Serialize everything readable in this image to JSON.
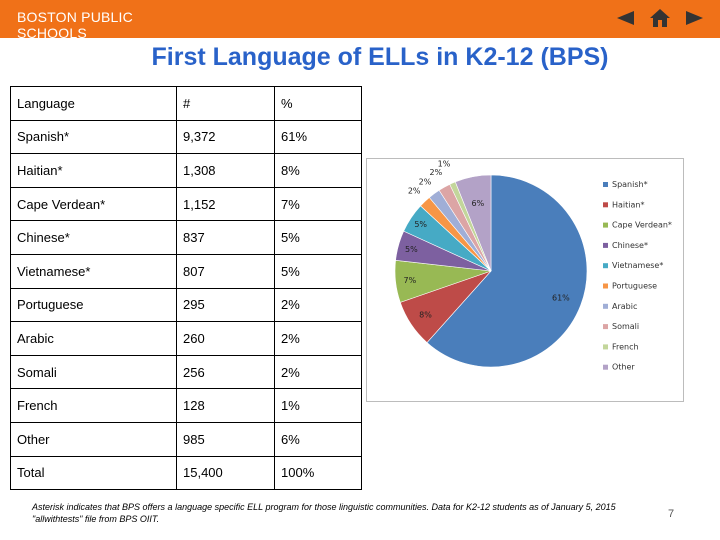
{
  "header": {
    "brand": "BOSTON PUBLIC SCHOOLS",
    "colors": {
      "bar": "#f07118",
      "icons": "#333333"
    },
    "icons": [
      "previous-arrow-icon",
      "home-icon",
      "next-arrow-icon"
    ]
  },
  "title": "First Language of ELLs in K2-12 (BPS)",
  "table": {
    "headers": [
      "Language",
      "#",
      "%"
    ],
    "rows": [
      [
        "Spanish*",
        "9,372",
        "61%"
      ],
      [
        "Haitian*",
        "1,308",
        "8%"
      ],
      [
        "Cape Verdean*",
        "1,152",
        "7%"
      ],
      [
        "Chinese*",
        "837",
        "5%"
      ],
      [
        "Vietnamese*",
        "807",
        "5%"
      ],
      [
        "Portuguese",
        "295",
        "2%"
      ],
      [
        "Arabic",
        "260",
        "2%"
      ],
      [
        "Somali",
        "256",
        "2%"
      ],
      [
        "French",
        "128",
        "1%"
      ],
      [
        "Other",
        "985",
        "6%"
      ],
      [
        "Total",
        "15,400",
        "100%"
      ]
    ]
  },
  "chart_data": {
    "type": "pie",
    "categories": [
      "Spanish*",
      "Haitian*",
      "Cape Verdean*",
      "Chinese*",
      "Vietnamese*",
      "Portuguese",
      "Arabic",
      "Somali",
      "French",
      "Other"
    ],
    "values": [
      61,
      8,
      7,
      5,
      5,
      2,
      2,
      2,
      1,
      6
    ],
    "labels": [
      "61%",
      "8%",
      "7%",
      "5%",
      "5%",
      "2%",
      "2%",
      "2%",
      "1%",
      "6%"
    ],
    "colors": [
      "#4a7ebb",
      "#be4b48",
      "#98b954",
      "#7d60a0",
      "#46aac5",
      "#f79646",
      "#a0aed6",
      "#dca5a5",
      "#c3d69b",
      "#b3a2c7"
    ],
    "legend": "right"
  },
  "footnote": "Asterisk indicates that BPS offers a language specific ELL program for those linguistic communities. Data for K2-12 students as of January 5, 2015 \"allwithtests\" file from BPS OIIT.",
  "page_number": "7"
}
